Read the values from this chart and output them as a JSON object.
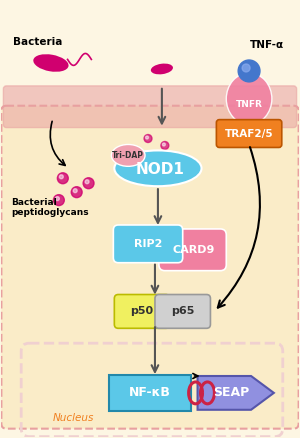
{
  "background_color": "#fdf6e3",
  "cell_membrane_color": "#e8a0a0",
  "cell_interior_color": "#faecc8",
  "nucleus_color": "#f0d0d0",
  "bacteria_color": "#d0006f",
  "nod1_color": "#5bc8e8",
  "nod1_text": "NOD1",
  "tri_dap_color": "#f0a0b0",
  "tri_dap_text": "Tri-DAP",
  "rip2_color": "#5bc8e8",
  "rip2_text": "RIP2",
  "card9_color": "#f080a0",
  "card9_text": "CARD9",
  "p50_color": "#f0f060",
  "p50_text": "p50",
  "p65_color": "#d0d0d0",
  "p65_text": "p65",
  "tnfr_color": "#f080a0",
  "tnfr_text": "TNFR",
  "traf25_color": "#f08020",
  "traf25_text": "TRAF2/5",
  "tnfa_text": "TNF-α",
  "nfkb_color": "#5bc8e8",
  "nfkb_text": "NF-κB",
  "seap_color": "#9090e0",
  "seap_text": "SEAP",
  "bacteria_label": "Bacteria",
  "peptido_label": "Bacterial\npeptidoglycans",
  "nucleus_label": "Nucleus",
  "arrow_color": "#555555",
  "arrow_color_black": "#000000"
}
